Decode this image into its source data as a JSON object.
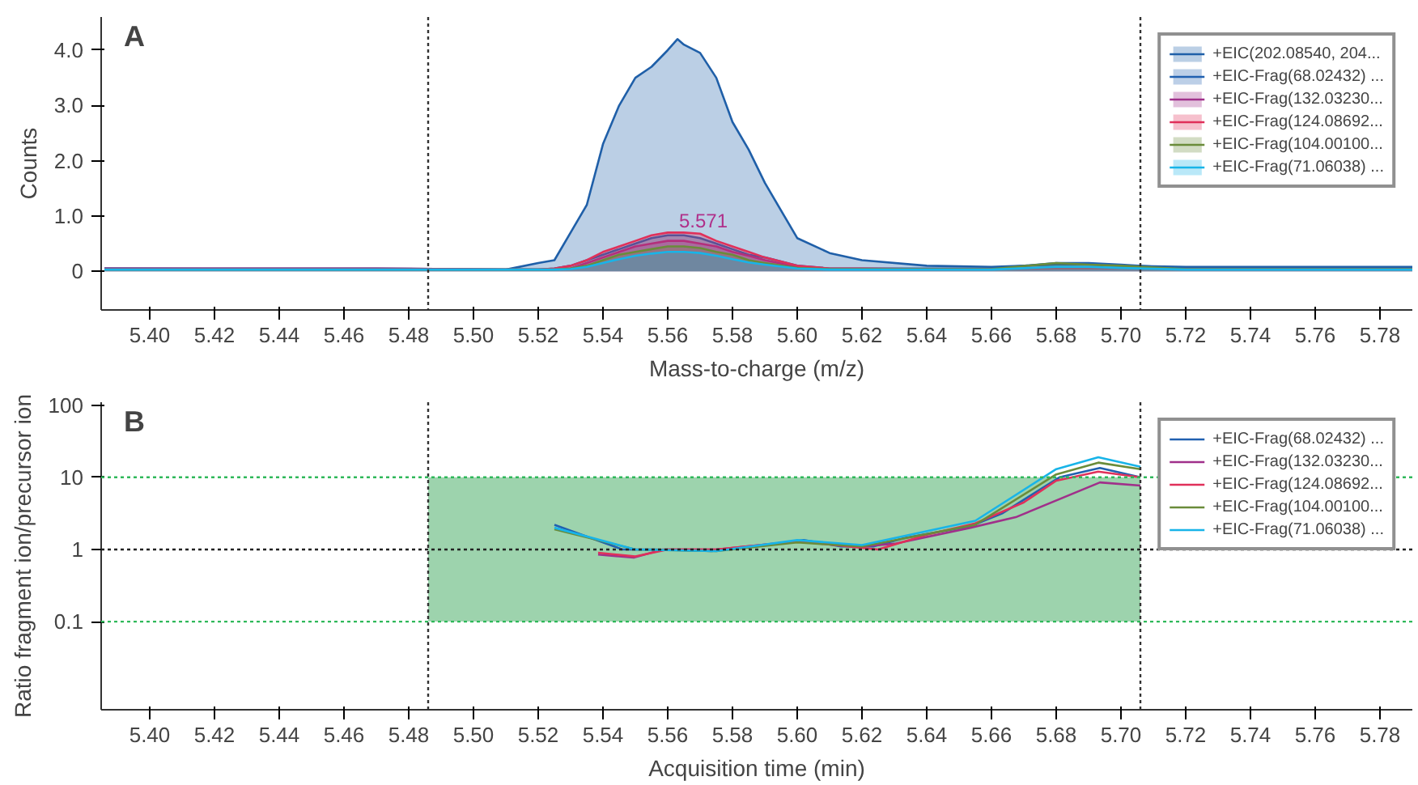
{
  "chart_data": [
    {
      "type": "area",
      "title": "A",
      "xlabel": "Mass-to-charge (m/z)",
      "ylabel": "Counts",
      "x": [
        5.386,
        5.47,
        5.51,
        5.52,
        5.525,
        5.53,
        5.535,
        5.54,
        5.545,
        5.55,
        5.555,
        5.56,
        5.563,
        5.565,
        5.57,
        5.575,
        5.58,
        5.585,
        5.59,
        5.6,
        5.61,
        5.62,
        5.64,
        5.66,
        5.68,
        5.69,
        5.7,
        5.72,
        5.79
      ],
      "series": [
        {
          "name": "+EIC(202.08540, 204...",
          "color": "#1f5fa8",
          "values": [
            0.05,
            0.03,
            0.03,
            0.15,
            0.2,
            0.7,
            1.2,
            2.3,
            3.0,
            3.5,
            3.7,
            4.0,
            4.2,
            4.1,
            3.95,
            3.5,
            2.7,
            2.2,
            1.6,
            0.6,
            0.33,
            0.2,
            0.1,
            0.08,
            0.12,
            0.12,
            0.1,
            0.08,
            0.08
          ]
        },
        {
          "name": "+EIC-Frag(68.02432) ...",
          "color": "#2060b0",
          "values": [
            0.05,
            0.05,
            0.03,
            0.03,
            0.05,
            0.1,
            0.2,
            0.3,
            0.4,
            0.5,
            0.6,
            0.65,
            0.65,
            0.65,
            0.6,
            0.5,
            0.4,
            0.3,
            0.25,
            0.1,
            0.05,
            0.05,
            0.05,
            0.05,
            0.15,
            0.15,
            0.12,
            0.05,
            0.05
          ]
        },
        {
          "name": "+EIC-Frag(132.03230...",
          "color": "#a0308a",
          "values": [
            0.05,
            0.05,
            0.03,
            0.03,
            0.03,
            0.05,
            0.15,
            0.25,
            0.35,
            0.45,
            0.5,
            0.55,
            0.55,
            0.55,
            0.5,
            0.45,
            0.35,
            0.28,
            0.2,
            0.08,
            0.04,
            0.04,
            0.04,
            0.04,
            0.05,
            0.05,
            0.05,
            0.04,
            0.04
          ]
        },
        {
          "name": "+EIC-Frag(124.08692...",
          "color": "#e0305a",
          "values": [
            0.03,
            0.03,
            0.03,
            0.03,
            0.05,
            0.1,
            0.2,
            0.35,
            0.45,
            0.55,
            0.65,
            0.7,
            0.7,
            0.7,
            0.68,
            0.55,
            0.45,
            0.35,
            0.25,
            0.1,
            0.05,
            0.05,
            0.04,
            0.04,
            0.05,
            0.05,
            0.05,
            0.04,
            0.04
          ]
        },
        {
          "name": "+EIC-Frag(104.00100...",
          "color": "#6a8c3a",
          "values": [
            0.03,
            0.03,
            0.03,
            0.03,
            0.03,
            0.05,
            0.1,
            0.2,
            0.3,
            0.35,
            0.4,
            0.45,
            0.45,
            0.45,
            0.42,
            0.35,
            0.3,
            0.2,
            0.15,
            0.06,
            0.04,
            0.04,
            0.04,
            0.04,
            0.15,
            0.12,
            0.1,
            0.04,
            0.04
          ]
        },
        {
          "name": "+EIC-Frag(71.06038) ...",
          "color": "#18b4e8",
          "values": [
            0.03,
            0.03,
            0.03,
            0.03,
            0.03,
            0.04,
            0.08,
            0.15,
            0.22,
            0.28,
            0.32,
            0.35,
            0.35,
            0.35,
            0.33,
            0.28,
            0.22,
            0.16,
            0.12,
            0.05,
            0.03,
            0.03,
            0.03,
            0.03,
            0.08,
            0.08,
            0.06,
            0.03,
            0.03
          ]
        }
      ],
      "xlim": [
        5.385,
        5.79
      ],
      "ylim": [
        -0.7,
        4.6
      ],
      "xticks": [
        {
          "value": 5.4,
          "label": "5.40"
        },
        {
          "value": 5.42,
          "label": "5.42"
        },
        {
          "value": 5.44,
          "label": "5.44"
        },
        {
          "value": 5.46,
          "label": "5.46"
        },
        {
          "value": 5.48,
          "label": "5.48"
        },
        {
          "value": 5.5,
          "label": "5.50"
        },
        {
          "value": 5.52,
          "label": "5.52"
        },
        {
          "value": 5.54,
          "label": "5.54"
        },
        {
          "value": 5.56,
          "label": "5.56"
        },
        {
          "value": 5.58,
          "label": "5.58"
        },
        {
          "value": 5.6,
          "label": "5.60"
        },
        {
          "value": 5.62,
          "label": "5.62"
        },
        {
          "value": 5.64,
          "label": "5.64"
        },
        {
          "value": 5.66,
          "label": "5.66"
        },
        {
          "value": 5.68,
          "label": "5.68"
        },
        {
          "value": 5.7,
          "label": "5.70"
        },
        {
          "value": 5.72,
          "label": "5.72"
        },
        {
          "value": 5.74,
          "label": "5.74"
        },
        {
          "value": 5.76,
          "label": "5.76"
        },
        {
          "value": 5.78,
          "label": "5.78"
        }
      ],
      "yticks": [
        0,
        {
          "value": 1,
          "label": "1.0"
        },
        {
          "value": 2,
          "label": "2.0"
        },
        {
          "value": 3,
          "label": "3.0"
        },
        {
          "value": 4,
          "label": "4.0"
        }
      ],
      "annotations": [
        {
          "text": "5.571",
          "x": 5.571,
          "y": 0.7
        }
      ],
      "ref_lines": [
        {
          "axis": "x",
          "value": 5.486,
          "color": "#333333",
          "line_style": "dotted"
        },
        {
          "axis": "x",
          "value": 5.706,
          "color": "#333333",
          "line_style": "dotted"
        }
      ],
      "legend": "top right",
      "grid": false
    },
    {
      "type": "line",
      "title": "B",
      "xlabel": "Acquisition time (min)",
      "ylabel": "Ratio fragment ion/precursor ion",
      "log": "y",
      "series": [
        {
          "name": "+EIC-Frag(68.02432) ...",
          "color": "#2060b0",
          "x": [
            5.525,
            5.546,
            5.556,
            5.5735,
            5.587,
            5.602,
            5.6135,
            5.6235,
            5.6335,
            5.6535,
            5.6635,
            5.681,
            5.6935,
            5.706
          ],
          "values": [
            2.2,
            1.0,
            1.0,
            0.95,
            1.1,
            1.35,
            1.1,
            1.1,
            1.45,
            2.1,
            3.2,
            10,
            13.5,
            10
          ]
        },
        {
          "name": "+EIC-Frag(132.03230...",
          "color": "#a0308a",
          "x": [
            5.5385,
            5.5495,
            5.5585,
            5.575,
            5.6,
            5.62,
            5.63,
            5.6535,
            5.6675,
            5.6935,
            5.706
          ],
          "values": [
            0.85,
            0.77,
            1.0,
            1.0,
            1.3,
            1.1,
            1.2,
            2.0,
            2.8,
            8.5,
            7.7
          ]
        },
        {
          "name": "+EIC-Frag(124.08692...",
          "color": "#e0305a",
          "x": [
            5.5385,
            5.55,
            5.56,
            5.575,
            5.6,
            5.62,
            5.625,
            5.64,
            5.655,
            5.67,
            5.68,
            5.693,
            5.706
          ],
          "values": [
            0.9,
            0.8,
            1.0,
            1.0,
            1.3,
            1.05,
            1.0,
            1.6,
            2.3,
            4.5,
            9,
            12,
            10
          ]
        },
        {
          "name": "+EIC-Frag(104.00100...",
          "color": "#6a8c3a",
          "x": [
            5.525,
            5.55,
            5.575,
            5.6,
            5.62,
            5.655,
            5.68,
            5.693,
            5.706
          ],
          "values": [
            1.9,
            1.0,
            0.95,
            1.25,
            1.1,
            2.2,
            11,
            16,
            13
          ]
        },
        {
          "name": "+EIC-Frag(71.06038) ...",
          "color": "#18b4e8",
          "x": [
            5.525,
            5.55,
            5.575,
            5.6,
            5.62,
            5.655,
            5.68,
            5.693,
            5.706
          ],
          "values": [
            2.0,
            1.0,
            0.95,
            1.35,
            1.15,
            2.5,
            13,
            19,
            14
          ]
        }
      ],
      "xlim": [
        5.385,
        5.79
      ],
      "ylim": [
        0.006,
        110
      ],
      "xticks": [
        {
          "value": 5.4,
          "label": "5.40"
        },
        {
          "value": 5.42,
          "label": "5.42"
        },
        {
          "value": 5.44,
          "label": "5.44"
        },
        {
          "value": 5.46,
          "label": "5.46"
        },
        {
          "value": 5.48,
          "label": "5.48"
        },
        {
          "value": 5.5,
          "label": "5.50"
        },
        {
          "value": 5.52,
          "label": "5.52"
        },
        {
          "value": 5.54,
          "label": "5.54"
        },
        {
          "value": 5.56,
          "label": "5.56"
        },
        {
          "value": 5.58,
          "label": "5.58"
        },
        {
          "value": 5.6,
          "label": "5.60"
        },
        {
          "value": 5.62,
          "label": "5.62"
        },
        {
          "value": 5.64,
          "label": "5.64"
        },
        {
          "value": 5.66,
          "label": "5.66"
        },
        {
          "value": 5.68,
          "label": "5.68"
        },
        {
          "value": 5.7,
          "label": "5.70"
        },
        {
          "value": 5.72,
          "label": "5.72"
        },
        {
          "value": 5.74,
          "label": "5.74"
        },
        {
          "value": 5.76,
          "label": "5.76"
        },
        {
          "value": 5.78,
          "label": "5.78"
        }
      ],
      "yticks": [
        0.1,
        1,
        10,
        100
      ],
      "ref_lines": [
        {
          "axis": "x",
          "value": 5.486,
          "color": "#333333",
          "line_style": "dotted"
        },
        {
          "axis": "x",
          "value": 5.706,
          "color": "#333333",
          "line_style": "dotted"
        },
        {
          "axis": "y",
          "value": 0.1,
          "color": "#2fb85a",
          "line_style": "dotted"
        },
        {
          "axis": "y",
          "value": 10,
          "color": "#2fb85a",
          "line_style": "dotted"
        },
        {
          "axis": "y",
          "value": 1,
          "color": "#222222",
          "line_style": "dotted"
        }
      ],
      "bands": [
        {
          "axis": "y",
          "from": 0.1,
          "to": 10,
          "color": "#4caf6a"
        }
      ],
      "legend": "top right",
      "grid": false,
      "marker": "none",
      "line_style": "solid"
    }
  ]
}
